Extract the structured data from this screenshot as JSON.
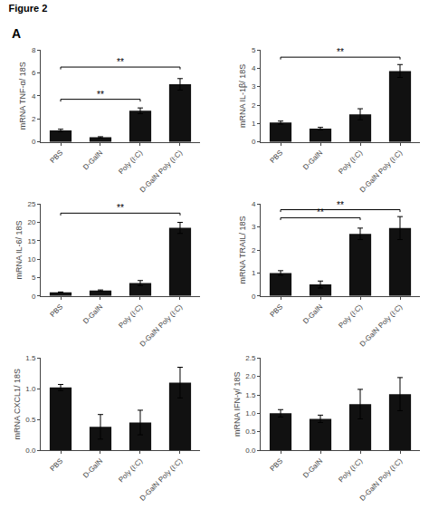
{
  "title": "Figure 2",
  "annotations": [
    {
      "text": "A"
    }
  ],
  "chart_data": [
    {
      "type": "bar",
      "ylabel": "mRNA TNF-α/ 18S",
      "categories": [
        "PBS",
        "D-GalN",
        "Poly (I:C)",
        "D-GalN Poly (I:C)"
      ],
      "values": [
        1.0,
        0.4,
        2.7,
        5.0
      ],
      "errors": [
        0.1,
        0.05,
        0.25,
        0.5
      ],
      "color": "#111111",
      "ylim": [
        0,
        8
      ],
      "yticks": [
        0,
        2,
        4,
        6,
        8
      ],
      "grid": false,
      "annotations": [
        {
          "x1": "PBS",
          "x2": "Poly (I:C)",
          "y": 3.7,
          "text": "**"
        },
        {
          "x1": "PBS",
          "x2": "D-GalN Poly (I:C)",
          "y": 6.5,
          "text": "**"
        }
      ]
    },
    {
      "type": "bar",
      "ylabel": "mRNA IL-1β/ 18S",
      "categories": [
        "PBS",
        "D-GalN",
        "Poly (I:C)",
        "D-GalN Poly (I:C)"
      ],
      "values": [
        1.05,
        0.72,
        1.5,
        3.85
      ],
      "errors": [
        0.08,
        0.07,
        0.3,
        0.35
      ],
      "color": "#111111",
      "ylim": [
        0,
        5
      ],
      "yticks": [
        0,
        1,
        2,
        3,
        4,
        5
      ],
      "grid": false,
      "annotations": [
        {
          "x1": "PBS",
          "x2": "D-GalN Poly (I:C)",
          "y": 4.6,
          "text": "**"
        }
      ]
    },
    {
      "type": "bar",
      "ylabel": "mRNA IL-6/ 18S",
      "categories": [
        "PBS",
        "D-GalN",
        "Poly (I:C)",
        "D-GalN Poly (I:C)"
      ],
      "values": [
        1.0,
        1.5,
        3.5,
        18.5
      ],
      "errors": [
        0.1,
        0.15,
        0.7,
        1.5
      ],
      "color": "#111111",
      "ylim": [
        0,
        25
      ],
      "yticks": [
        0,
        5,
        10,
        15,
        20,
        25
      ],
      "grid": false,
      "annotations": [
        {
          "x1": "PBS",
          "x2": "D-GalN Poly (I:C)",
          "y": 22.5,
          "text": "**"
        }
      ]
    },
    {
      "type": "bar",
      "ylabel": "mRNA TRAIL/ 18S",
      "categories": [
        "PBS",
        "D-GalN",
        "Poly (I:C)",
        "D-GalN Poly (I:C)"
      ],
      "values": [
        1.0,
        0.5,
        2.7,
        2.95
      ],
      "errors": [
        0.1,
        0.15,
        0.25,
        0.5
      ],
      "color": "#111111",
      "ylim": [
        0,
        4
      ],
      "yticks": [
        0,
        1,
        2,
        3,
        4
      ],
      "grid": false,
      "annotations": [
        {
          "x1": "PBS",
          "x2": "Poly (I:C)",
          "y": 3.4,
          "text": "**"
        },
        {
          "x1": "PBS",
          "x2": "D-GalN Poly (I:C)",
          "y": 3.75,
          "text": "**"
        }
      ]
    },
    {
      "type": "bar",
      "ylabel": "mRNA CXCL1/ 18S",
      "categories": [
        "PBS",
        "D-GalN",
        "Poly (I:C)",
        "D-GalN Poly (I:C)"
      ],
      "values": [
        1.02,
        0.38,
        0.45,
        1.1
      ],
      "errors": [
        0.05,
        0.2,
        0.2,
        0.25
      ],
      "color": "#111111",
      "ylim": [
        0,
        1.5
      ],
      "yticks": [
        {
          "value": 0,
          "label": "0.0"
        },
        0.5,
        {
          "value": 1,
          "label": "1.0"
        },
        1.5
      ],
      "grid": false
    },
    {
      "type": "bar",
      "ylabel": "mRNA IFN-γ/ 18S",
      "categories": [
        "PBS",
        "D-GalN",
        "Poly (I:C)",
        "D-GalN Poly (I:C)"
      ],
      "values": [
        1.0,
        0.85,
        1.25,
        1.52
      ],
      "errors": [
        0.1,
        0.1,
        0.4,
        0.45
      ],
      "color": "#111111",
      "ylim": [
        0,
        2.5
      ],
      "yticks": [
        {
          "value": 0,
          "label": "0.0"
        },
        0.5,
        {
          "value": 1,
          "label": "1.0"
        },
        1.5,
        {
          "value": 2,
          "label": "2.0"
        },
        2.5
      ],
      "grid": false
    }
  ]
}
